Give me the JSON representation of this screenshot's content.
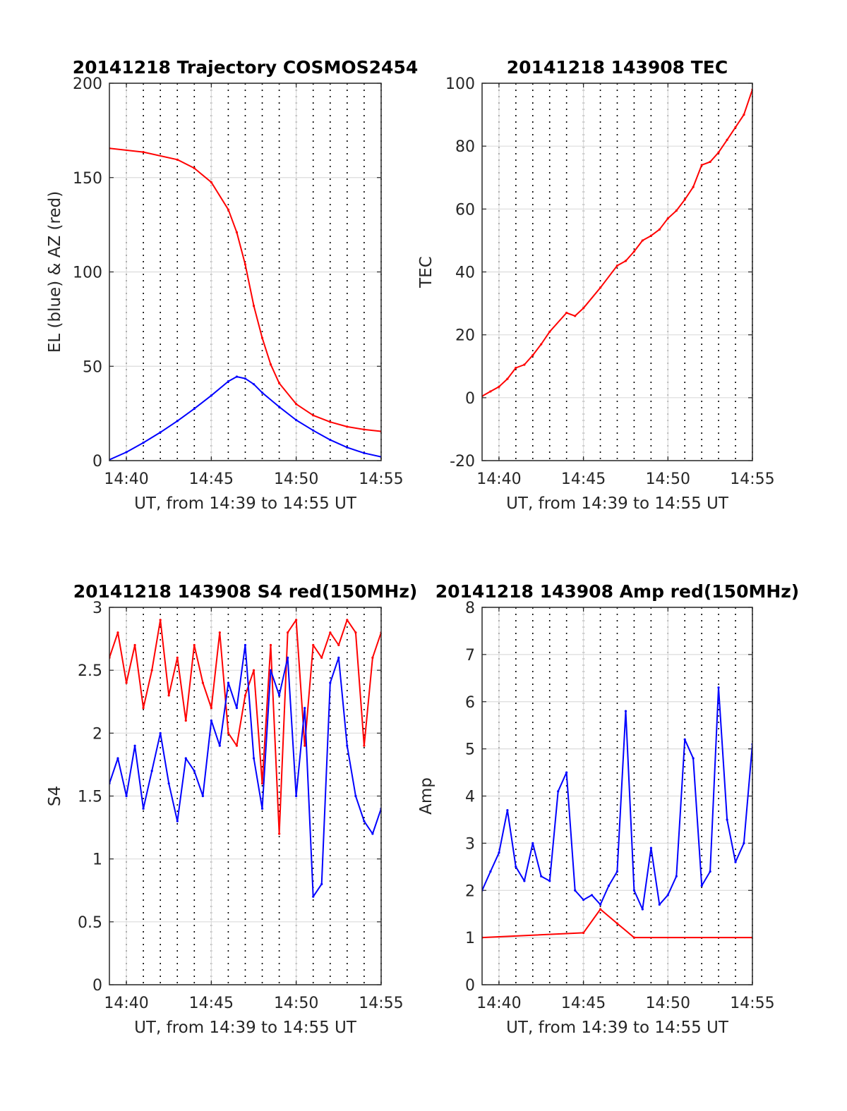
{
  "chart_data": [
    {
      "type": "line",
      "title": "20141218 Trajectory COSMOS2454",
      "xlabel": "UT, from 14:39 to 14:55 UT",
      "ylabel": "EL (blue) & AZ (red)",
      "x_ticks": [
        "14:40",
        "14:45",
        "14:50",
        "14:55"
      ],
      "y_ticks": [
        "0",
        "50",
        "100",
        "150",
        "200"
      ],
      "xlim": [
        14.65,
        14.9167
      ],
      "ylim": [
        0,
        200
      ],
      "grid": true,
      "series": [
        {
          "color": "#ff0000",
          "x": [
            14.65,
            14.6833,
            14.7167,
            14.7333,
            14.75,
            14.7667,
            14.775,
            14.7833,
            14.7917,
            14.8,
            14.8083,
            14.8167,
            14.8333,
            14.85,
            14.8667,
            14.8833,
            14.9,
            14.9167
          ],
          "y": [
            165.5,
            163.5,
            159.5,
            155,
            147.5,
            133,
            121,
            104,
            82,
            65,
            51,
            41,
            30,
            24,
            20.5,
            18,
            16.5,
            15.5
          ]
        },
        {
          "color": "#0000ff",
          "x": [
            14.65,
            14.6667,
            14.6833,
            14.7,
            14.7167,
            14.7333,
            14.75,
            14.7667,
            14.775,
            14.7833,
            14.7917,
            14.8,
            14.8167,
            14.8333,
            14.85,
            14.8667,
            14.8833,
            14.9,
            14.9167
          ],
          "y": [
            0.5,
            4.5,
            9.5,
            15,
            21,
            27.5,
            34.5,
            42,
            44.5,
            43.5,
            40.5,
            36,
            28.5,
            21.5,
            16,
            11,
            7,
            4,
            2
          ]
        }
      ]
    },
    {
      "type": "line",
      "title": "20141218 143908 TEC",
      "xlabel": "UT, from 14:39 to 14:55 UT",
      "ylabel": "TEC",
      "x_ticks": [
        "14:40",
        "14:45",
        "14:50",
        "14:55"
      ],
      "y_ticks": [
        "-20",
        "0",
        "20",
        "40",
        "60",
        "80",
        "100"
      ],
      "xlim": [
        14.65,
        14.9167
      ],
      "ylim": [
        -20,
        100
      ],
      "grid": true,
      "series": [
        {
          "color": "#ff0000",
          "x": [
            14.65,
            14.6583,
            14.6667,
            14.675,
            14.6833,
            14.6917,
            14.7,
            14.7083,
            14.7167,
            14.7333,
            14.7417,
            14.75,
            14.7667,
            14.7833,
            14.7917,
            14.8,
            14.8083,
            14.8167,
            14.825,
            14.8333,
            14.8417,
            14.85,
            14.8583,
            14.8667,
            14.875,
            14.8833,
            14.8917,
            14.9,
            14.9083,
            14.9167
          ],
          "y": [
            0.5,
            2,
            3.5,
            6,
            9.5,
            10.5,
            13.5,
            17,
            21,
            27,
            26,
            28.5,
            35,
            42,
            43.5,
            46.5,
            50,
            51.5,
            53.5,
            57,
            59.5,
            63,
            67,
            74,
            75,
            78,
            82,
            86,
            90,
            98
          ]
        }
      ]
    },
    {
      "type": "line",
      "title": "20141218 143908 S4 red(150MHz)",
      "xlabel": "UT, from 14:39 to 14:55 UT",
      "ylabel": "S4",
      "x_ticks": [
        "14:40",
        "14:45",
        "14:50",
        "14:55"
      ],
      "y_ticks": [
        "0",
        "0.5",
        "1",
        "1.5",
        "2",
        "2.5",
        "3"
      ],
      "xlim": [
        14.65,
        14.9167
      ],
      "ylim": [
        0,
        3
      ],
      "grid": true,
      "series": [
        {
          "color": "#ff0000",
          "x": [
            14.65,
            14.6583,
            14.6667,
            14.675,
            14.6833,
            14.6917,
            14.7,
            14.7083,
            14.7167,
            14.725,
            14.7333,
            14.7417,
            14.75,
            14.7583,
            14.7667,
            14.775,
            14.7833,
            14.7917,
            14.8,
            14.8083,
            14.8167,
            14.825,
            14.8333,
            14.8417,
            14.85,
            14.8583,
            14.8667,
            14.875,
            14.8833,
            14.8917,
            14.9,
            14.9083,
            14.9167
          ],
          "y": [
            2.6,
            2.8,
            2.4,
            2.7,
            2.2,
            2.5,
            2.9,
            2.3,
            2.6,
            2.1,
            2.7,
            2.4,
            2.2,
            2.8,
            2.0,
            1.9,
            2.3,
            2.5,
            1.6,
            2.7,
            1.2,
            2.8,
            2.9,
            1.9,
            2.7,
            2.6,
            2.8,
            2.7,
            2.9,
            2.8,
            1.9,
            2.6,
            2.8
          ]
        },
        {
          "color": "#0000ff",
          "x": [
            14.65,
            14.6583,
            14.6667,
            14.675,
            14.6833,
            14.6917,
            14.7,
            14.7083,
            14.7167,
            14.725,
            14.7333,
            14.7417,
            14.75,
            14.7583,
            14.7667,
            14.775,
            14.7833,
            14.7917,
            14.8,
            14.8083,
            14.8167,
            14.825,
            14.8333,
            14.8417,
            14.85,
            14.8583,
            14.8667,
            14.875,
            14.8833,
            14.8917,
            14.9,
            14.9083,
            14.9167
          ],
          "y": [
            1.6,
            1.8,
            1.5,
            1.9,
            1.4,
            1.7,
            2.0,
            1.6,
            1.3,
            1.8,
            1.7,
            1.5,
            2.1,
            1.9,
            2.4,
            2.2,
            2.7,
            1.8,
            1.4,
            2.5,
            2.3,
            2.6,
            1.5,
            2.2,
            0.7,
            0.8,
            2.4,
            2.6,
            1.9,
            1.5,
            1.3,
            1.2,
            1.4
          ]
        }
      ]
    },
    {
      "type": "line",
      "title": "20141218 143908 Amp red(150MHz)",
      "xlabel": "UT, from 14:39 to 14:55 UT",
      "ylabel": "Amp",
      "x_ticks": [
        "14:40",
        "14:45",
        "14:50",
        "14:55"
      ],
      "y_ticks": [
        "0",
        "1",
        "2",
        "3",
        "4",
        "5",
        "6",
        "7",
        "8"
      ],
      "xlim": [
        14.65,
        14.9167
      ],
      "ylim": [
        0,
        8
      ],
      "grid": true,
      "series": [
        {
          "color": "#ff0000",
          "x": [
            14.65,
            14.75,
            14.7667,
            14.7833,
            14.8,
            14.9167
          ],
          "y": [
            1.0,
            1.1,
            1.6,
            1.3,
            1.0,
            1.0
          ]
        },
        {
          "color": "#0000ff",
          "x": [
            14.65,
            14.6583,
            14.6667,
            14.675,
            14.6833,
            14.6917,
            14.7,
            14.7083,
            14.7167,
            14.725,
            14.7333,
            14.7417,
            14.75,
            14.7583,
            14.7667,
            14.775,
            14.7833,
            14.7917,
            14.8,
            14.8083,
            14.8167,
            14.825,
            14.8333,
            14.8417,
            14.85,
            14.8583,
            14.8667,
            14.875,
            14.8833,
            14.8917,
            14.9,
            14.9083,
            14.9167
          ],
          "y": [
            2.0,
            2.4,
            2.8,
            3.7,
            2.5,
            2.2,
            3.0,
            2.3,
            2.2,
            4.1,
            4.5,
            2.0,
            1.8,
            1.9,
            1.7,
            2.1,
            2.4,
            5.8,
            2.0,
            1.6,
            2.9,
            1.7,
            1.9,
            2.3,
            5.2,
            4.8,
            2.1,
            2.4,
            6.3,
            3.5,
            2.6,
            3.0,
            5.1
          ]
        }
      ]
    }
  ]
}
